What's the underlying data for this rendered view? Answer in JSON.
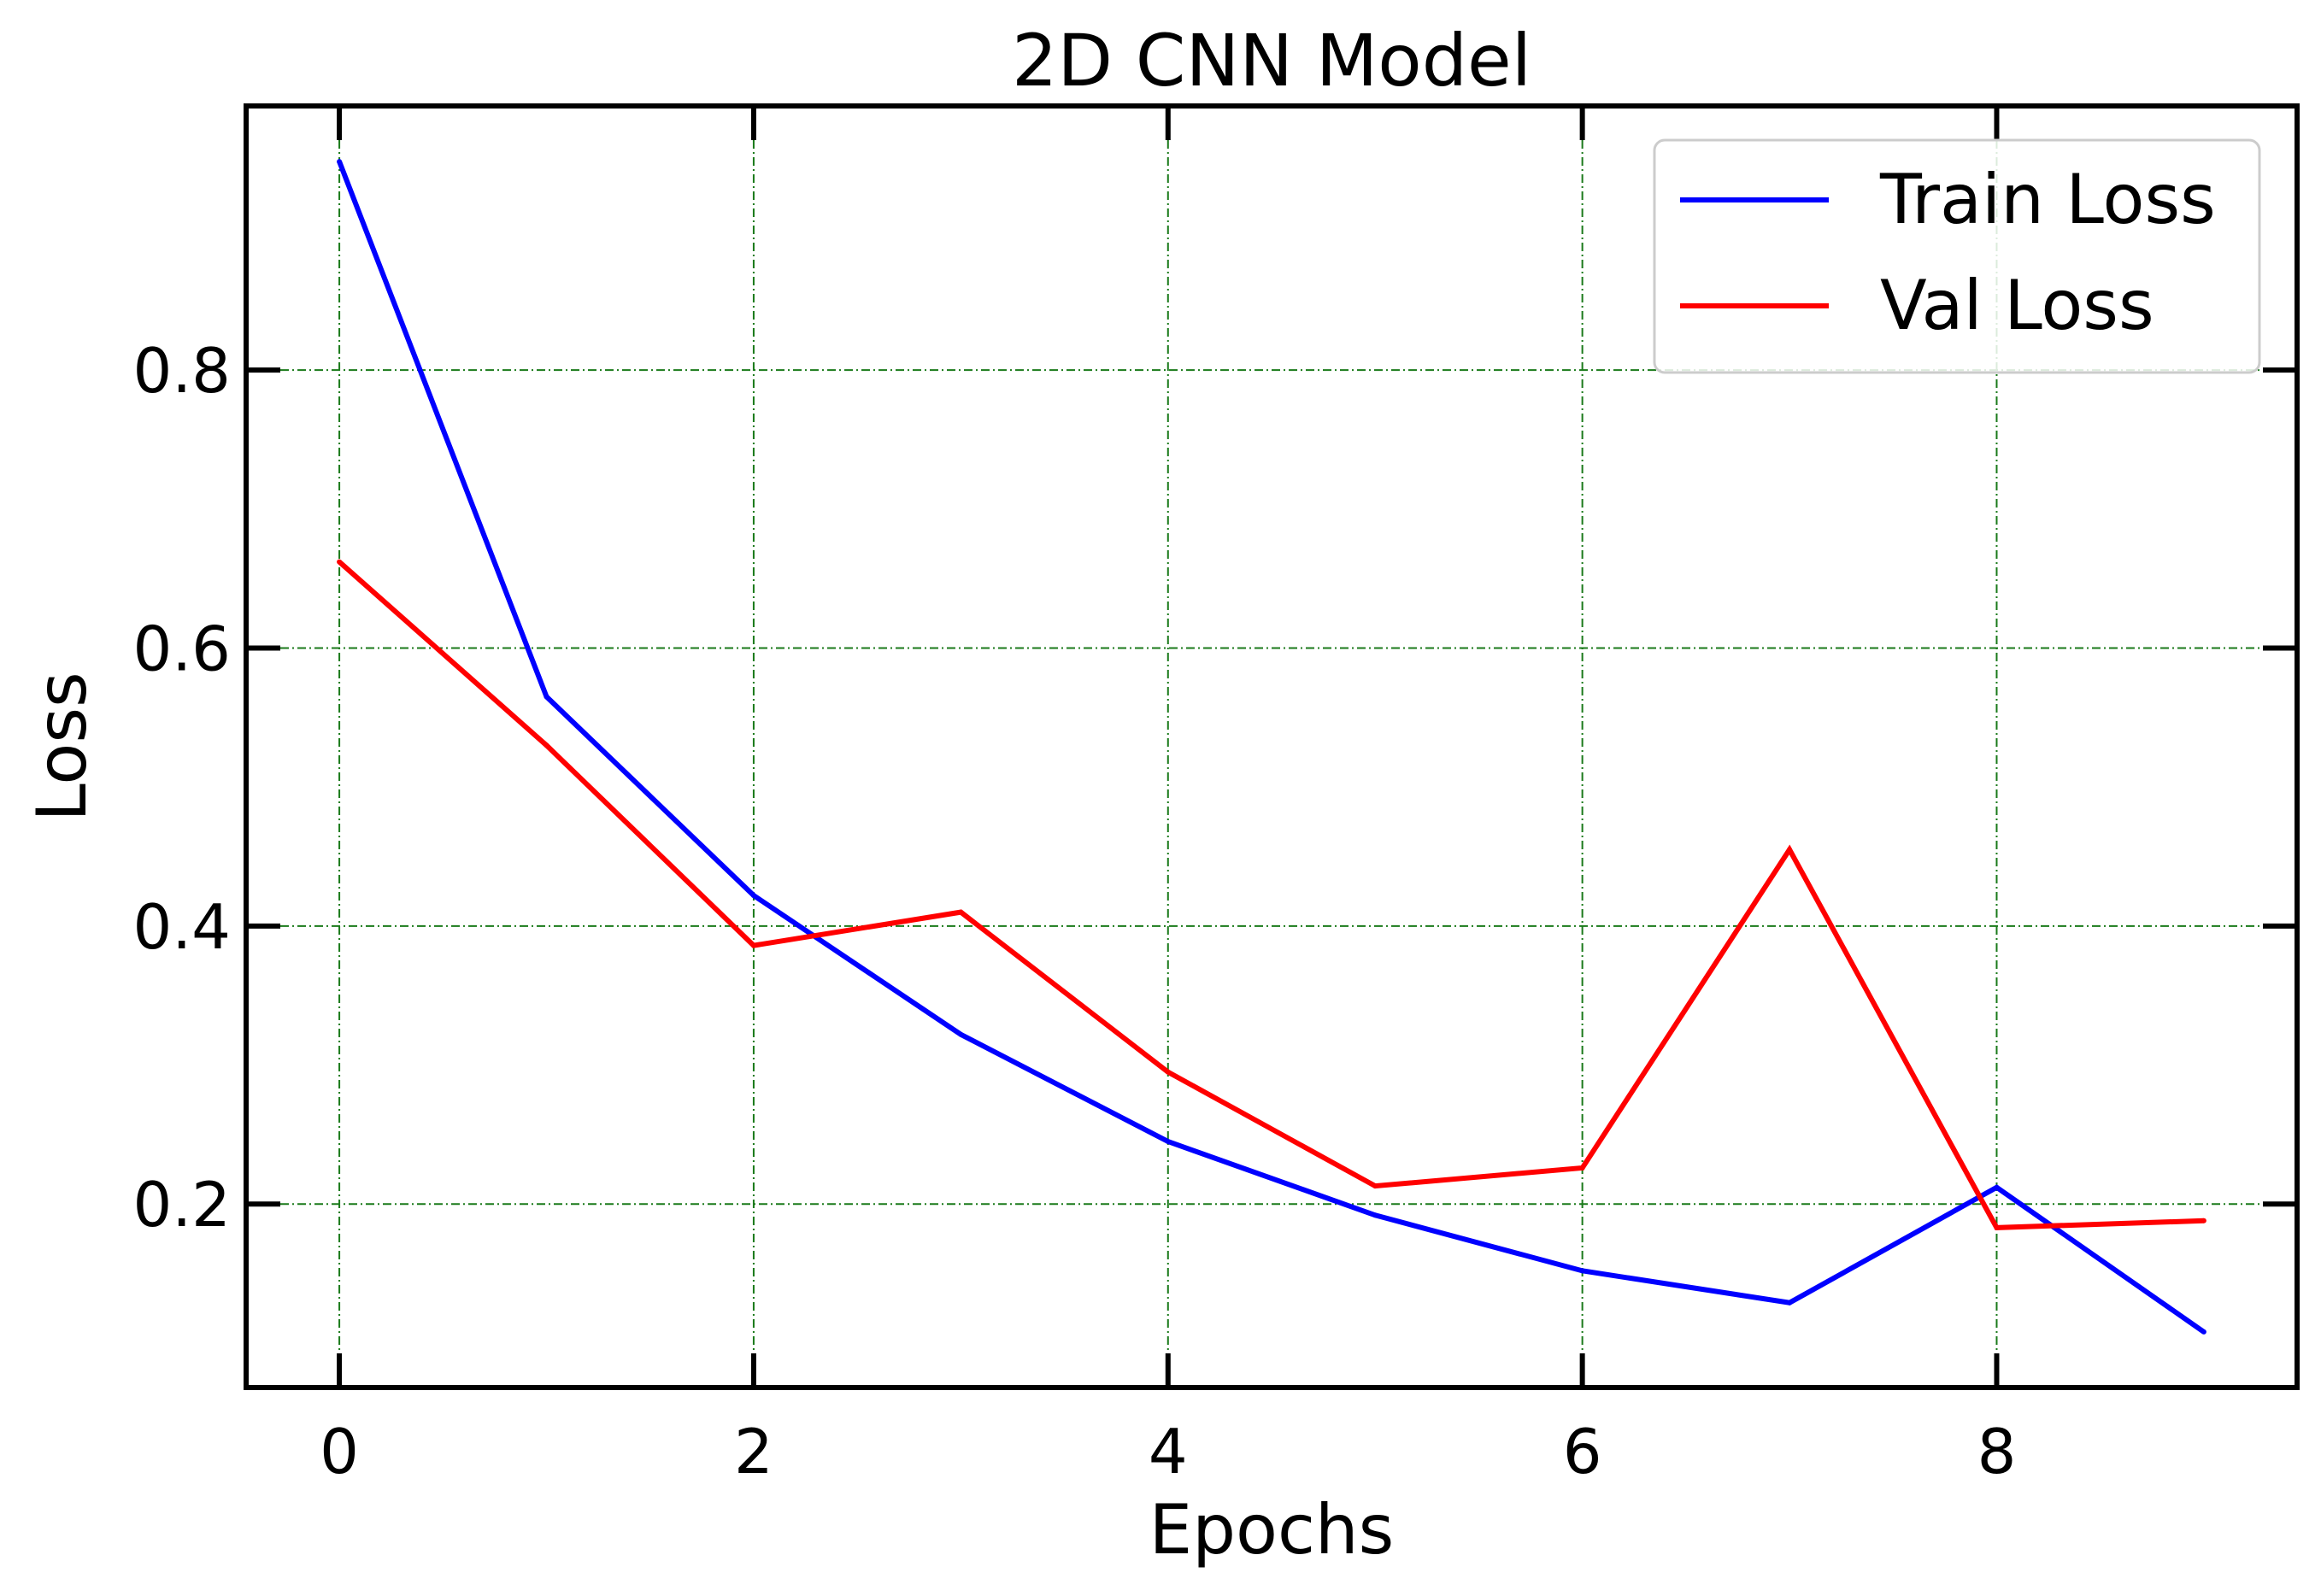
{
  "chart_data": {
    "type": "line",
    "title": "2D CNN Model",
    "xlabel": "Epochs",
    "ylabel": "Loss",
    "x": [
      0,
      1,
      2,
      3,
      4,
      5,
      6,
      7,
      8,
      9
    ],
    "xlim": [
      -0.45,
      9.45
    ],
    "ylim": [
      0.068,
      0.99
    ],
    "xticks": [
      0,
      2,
      4,
      6,
      8
    ],
    "yticks": [
      0.2,
      0.4,
      0.6,
      0.8
    ],
    "xtick_labels": [
      "0",
      "2",
      "4",
      "6",
      "8"
    ],
    "ytick_labels": [
      "0.2",
      "0.4",
      "0.6",
      "0.8"
    ],
    "grid": true,
    "grid_color": "#1a7a1a",
    "legend_position": "top-right",
    "series": [
      {
        "name": "Train Loss",
        "color": "#0000ff",
        "values": [
          0.95,
          0.565,
          0.422,
          0.322,
          0.245,
          0.192,
          0.152,
          0.129,
          0.212,
          0.108
        ]
      },
      {
        "name": "Val Loss",
        "color": "#ff0000",
        "values": [
          0.662,
          0.53,
          0.386,
          0.41,
          0.295,
          0.213,
          0.226,
          0.455,
          0.183,
          0.188
        ]
      }
    ]
  }
}
